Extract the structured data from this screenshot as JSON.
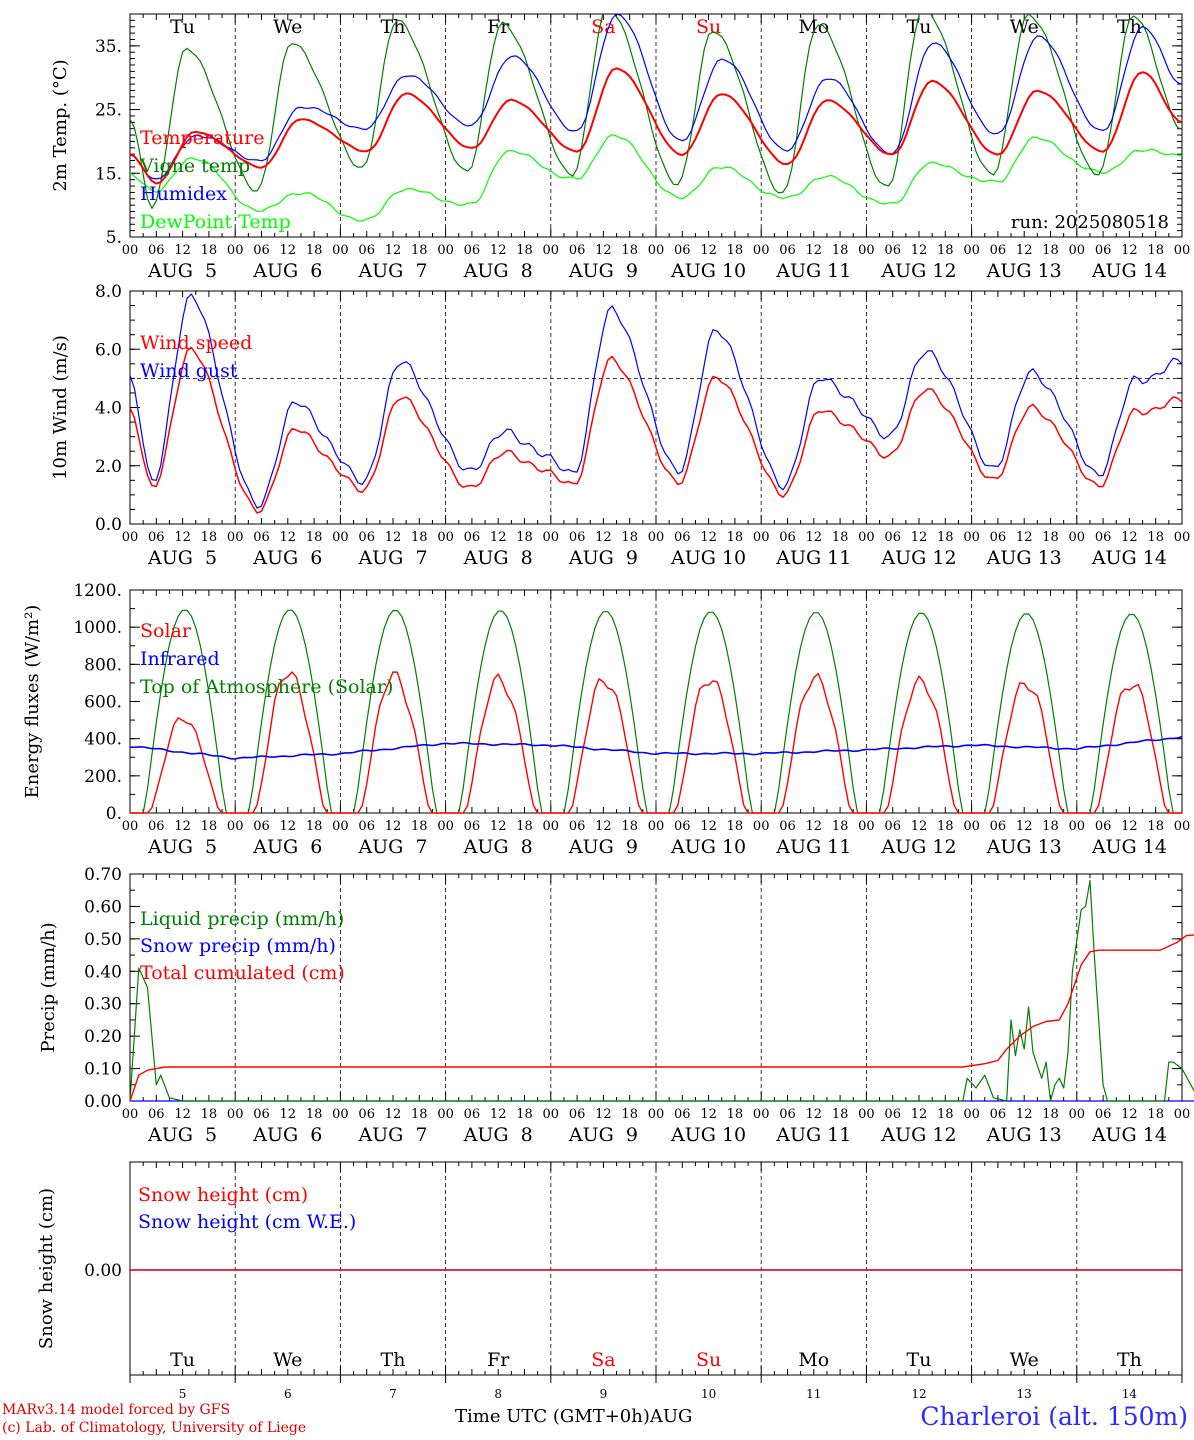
{
  "footer": {
    "credit_line1": "MARv3.14 model forced by GFS",
    "credit_line2": "(c) Lab. of Climatology, University of Liege",
    "x_axis_title": "Time UTC (GMT+0h)AUG",
    "station": "Charleroi (alt. 150m)"
  },
  "colors": {
    "red": "#ff0000",
    "blue": "#0000ff",
    "dark_green": "#007f00",
    "light_green": "#00ff00",
    "weekend": "#ff0000",
    "text": "#000000"
  },
  "time_axis": {
    "start": "2025-08-05 00:00",
    "end": "2025-08-15 00:00",
    "hour_ticks": [
      "00",
      "06",
      "12",
      "18"
    ],
    "last_tick": "00",
    "day_labels": [
      "AUG  5",
      "AUG  6",
      "AUG  7",
      "AUG  8",
      "AUG  9",
      "AUG 10",
      "AUG 11",
      "AUG 12",
      "AUG 13",
      "AUG 14"
    ],
    "weekdays": [
      "Tu",
      "We",
      "Th",
      "Fr",
      "Sa",
      "Su",
      "Mo",
      "Tu",
      "We",
      "Th"
    ],
    "weekend_flags": [
      false,
      false,
      false,
      false,
      true,
      true,
      false,
      false,
      false,
      false
    ],
    "day_numbers": [
      "5",
      "6",
      "7",
      "8",
      "9",
      "10",
      "11",
      "12",
      "13",
      "14"
    ]
  },
  "chart_data": [
    {
      "type": "line",
      "ylabel": "2m Temp. (°C)",
      "ylim": [
        5,
        40
      ],
      "yticks": [
        5,
        15,
        25,
        35
      ],
      "ytick_labels": [
        "5.",
        "15.",
        "25.",
        "35."
      ],
      "annotation": "run: 2025080518",
      "legend_placement": "left",
      "series": [
        {
          "name": "Temperature",
          "color": "red",
          "daily_min": [
            13.5,
            16,
            18.5,
            19,
            18.5,
            18,
            16.5,
            18,
            18,
            18.5
          ],
          "daily_max": [
            21.5,
            23.5,
            27.5,
            26.5,
            31.5,
            27.5,
            26.5,
            29.5,
            28,
            31
          ],
          "end": 23
        },
        {
          "name": "Vigne temp",
          "color": "dark_green",
          "daily_min": [
            10,
            12.5,
            16,
            15.5,
            15,
            13.5,
            12,
            13,
            15,
            15
          ],
          "daily_max": [
            34.5,
            35.5,
            39,
            38.5,
            41,
            37.5,
            38.5,
            41,
            40,
            40
          ],
          "end": 22
        },
        {
          "name": "Humidex",
          "color": "blue",
          "daily_min": [
            14,
            17,
            22,
            22.5,
            21.5,
            20,
            18.5,
            18,
            21,
            21.5
          ],
          "daily_max": [
            21,
            25.5,
            30.5,
            33.5,
            40,
            33,
            30,
            35.5,
            36.5,
            38
          ],
          "end": 29
        },
        {
          "name": "DewPoint Temp",
          "color": "light_green",
          "daily_min": [
            12,
            9,
            7.5,
            10,
            14,
            11,
            11,
            10,
            13.5,
            15
          ],
          "daily_max": [
            17.5,
            12,
            12.5,
            18.5,
            21,
            16,
            14.5,
            16.5,
            20.5,
            18.5
          ],
          "end": 18
        }
      ]
    },
    {
      "type": "line",
      "ylabel": "10m Wind (m/s)",
      "ylim": [
        0,
        8
      ],
      "yticks": [
        0,
        2,
        4,
        6,
        8
      ],
      "ytick_labels": [
        "0.0",
        "2.0",
        "4.0",
        "6.0",
        "8.0"
      ],
      "reference_line": 5,
      "legend_placement": "left",
      "series": [
        {
          "name": "Wind speed",
          "color": "red",
          "daily_min": [
            1.3,
            0.5,
            1.2,
            1.3,
            1.4,
            1.5,
            1.1,
            2.4,
            1.6,
            1.4
          ],
          "daily_max": [
            5.9,
            3.2,
            4.3,
            2.4,
            5.6,
            5.0,
            3.9,
            4.6,
            4.0,
            3.9
          ],
          "end": 4.2
        },
        {
          "name": "Wind gust",
          "color": "blue",
          "daily_min": [
            1.5,
            0.7,
            1.5,
            1.9,
            1.8,
            1.9,
            1.4,
            3.1,
            2.0,
            1.8
          ],
          "daily_max": [
            7.7,
            4.1,
            5.5,
            3.1,
            7.3,
            6.6,
            5.0,
            5.9,
            5.2,
            5.0
          ],
          "end": 5.5
        }
      ]
    },
    {
      "type": "line",
      "ylabel": "Energy fluxes (W/m²)",
      "ylim": [
        0,
        1200
      ],
      "yticks": [
        0,
        200,
        400,
        600,
        800,
        1000,
        1200
      ],
      "ytick_labels": [
        "0.",
        "200.",
        "400.",
        "600.",
        "800.",
        "1000.",
        "1200."
      ],
      "legend_placement": "left",
      "series": [
        {
          "name": "Solar",
          "color": "red",
          "daily_peak": [
            560,
            835,
            820,
            800,
            800,
            810,
            820,
            800,
            790,
            790
          ]
        },
        {
          "name": "Infrared",
          "color": "blue",
          "daily_mean": [
            360,
            295,
            320,
            375,
            365,
            320,
            320,
            340,
            365,
            345
          ],
          "end": 410
        },
        {
          "name": "Top of Atmosphere (Solar)",
          "color": "dark_green",
          "daily_peak": [
            1095,
            1095,
            1093,
            1090,
            1087,
            1084,
            1081,
            1078,
            1075,
            1072
          ]
        }
      ]
    },
    {
      "type": "line",
      "ylabel": "Precip (mm/h)",
      "ylim": [
        0,
        0.7
      ],
      "yticks": [
        0,
        0.1,
        0.2,
        0.3,
        0.4,
        0.5,
        0.6,
        0.7
      ],
      "ytick_labels": [
        "0.00",
        "0.10",
        "0.20",
        "0.30",
        "0.40",
        "0.50",
        "0.60",
        "0.70"
      ],
      "legend_placement": "left",
      "series": [
        {
          "name": "Liquid precip (mm/h)",
          "color": "dark_green",
          "points": [
            [
              0,
              0.0
            ],
            [
              2,
              0.41
            ],
            [
              4,
              0.35
            ],
            [
              6,
              0.05
            ],
            [
              7,
              0.08
            ],
            [
              9,
              0.01
            ],
            [
              12,
              0.0
            ],
            [
              190,
              0.0
            ],
            [
              191,
              0.07
            ],
            [
              193,
              0.04
            ],
            [
              195,
              0.08
            ],
            [
              197,
              0.01
            ],
            [
              200,
              0.0
            ],
            [
              201,
              0.25
            ],
            [
              202,
              0.14
            ],
            [
              203,
              0.22
            ],
            [
              204,
              0.16
            ],
            [
              205,
              0.29
            ],
            [
              206,
              0.15
            ],
            [
              208,
              0.07
            ],
            [
              209,
              0.12
            ],
            [
              210,
              0.0
            ],
            [
              211,
              0.05
            ],
            [
              212,
              0.07
            ],
            [
              213,
              0.04
            ],
            [
              214,
              0.15
            ],
            [
              215,
              0.4
            ],
            [
              217,
              0.59
            ],
            [
              218,
              0.6
            ],
            [
              219,
              0.68
            ],
            [
              220,
              0.45
            ],
            [
              222,
              0.05
            ],
            [
              223,
              0.0
            ],
            [
              236,
              0.0
            ],
            [
              237,
              0.12
            ],
            [
              238,
              0.12
            ],
            [
              240,
              0.1
            ],
            [
              242,
              0.05
            ],
            [
              244,
              0.0
            ],
            [
              247,
              0.0
            ],
            [
              248,
              0.08
            ],
            [
              249,
              0.18
            ]
          ]
        },
        {
          "name": "Snow precip (mm/h)",
          "color": "blue",
          "points": [
            [
              0,
              0.0
            ],
            [
              249,
              0.0
            ]
          ]
        },
        {
          "name": "Total cumulated (cm)",
          "color": "red",
          "points": [
            [
              0,
              0.0
            ],
            [
              2,
              0.08
            ],
            [
              4,
              0.095
            ],
            [
              8,
              0.105
            ],
            [
              190,
              0.105
            ],
            [
              195,
              0.115
            ],
            [
              198,
              0.125
            ],
            [
              200,
              0.16
            ],
            [
              203,
              0.2
            ],
            [
              206,
              0.23
            ],
            [
              209,
              0.245
            ],
            [
              212,
              0.25
            ],
            [
              214,
              0.3
            ],
            [
              217,
              0.42
            ],
            [
              219,
              0.46
            ],
            [
              221,
              0.465
            ],
            [
              235,
              0.465
            ],
            [
              239,
              0.49
            ],
            [
              241,
              0.51
            ],
            [
              246,
              0.515
            ],
            [
              248,
              0.515
            ],
            [
              249,
              0.53
            ]
          ]
        }
      ]
    },
    {
      "type": "line",
      "ylabel": "Snow height (cm)",
      "ytick_labels": [
        "0.00"
      ],
      "legend_placement": "left",
      "series": [
        {
          "name": "Snow height (cm)",
          "color": "red",
          "values": [
            0.0,
            0.0
          ]
        },
        {
          "name": "Snow height (cm W.E.)",
          "color": "blue",
          "values": [
            0.0,
            0.0
          ]
        }
      ]
    }
  ]
}
